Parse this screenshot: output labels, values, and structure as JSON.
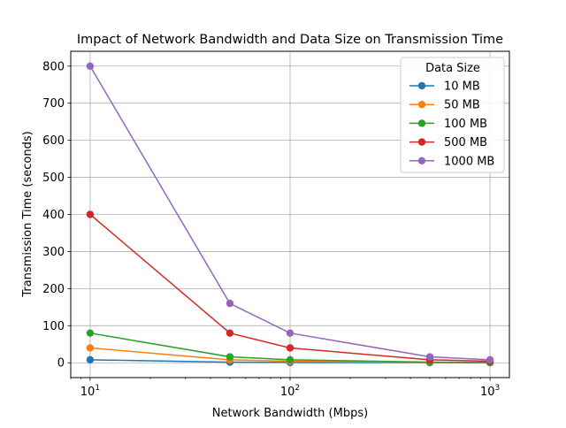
{
  "chart_data": {
    "type": "line",
    "title": "Impact of Network Bandwidth and Data Size on Transmission Time",
    "xlabel": "Network Bandwidth (Mbps)",
    "ylabel": "Transmission Time (seconds)",
    "xscale": "log",
    "xlim": [
      8,
      1250
    ],
    "ylim": [
      -40,
      840
    ],
    "x": [
      10,
      50,
      100,
      500,
      1000
    ],
    "y_ticks": [
      0,
      100,
      200,
      300,
      400,
      500,
      600,
      700,
      800
    ],
    "x_ticks": [
      {
        "value": 10,
        "base": "10",
        "exp": "1"
      },
      {
        "value": 100,
        "base": "10",
        "exp": "2"
      },
      {
        "value": 1000,
        "base": "10",
        "exp": "3"
      }
    ],
    "grid": true,
    "legend": {
      "title": "Data Size",
      "placement": "top-right"
    },
    "series": [
      {
        "name": "10 MB",
        "color": "#1f77b4",
        "values": [
          8,
          1.6,
          0.8,
          0.16,
          0.08
        ]
      },
      {
        "name": "50 MB",
        "color": "#ff7f0e",
        "values": [
          40,
          8,
          4,
          0.8,
          0.4
        ]
      },
      {
        "name": "100 MB",
        "color": "#2ca02c",
        "values": [
          80,
          16,
          8,
          1.6,
          0.8
        ]
      },
      {
        "name": "500 MB",
        "color": "#d62728",
        "values": [
          400,
          80,
          40,
          8,
          4
        ]
      },
      {
        "name": "1000 MB",
        "color": "#9467bd",
        "values": [
          800,
          160,
          80,
          16,
          8
        ]
      }
    ]
  }
}
